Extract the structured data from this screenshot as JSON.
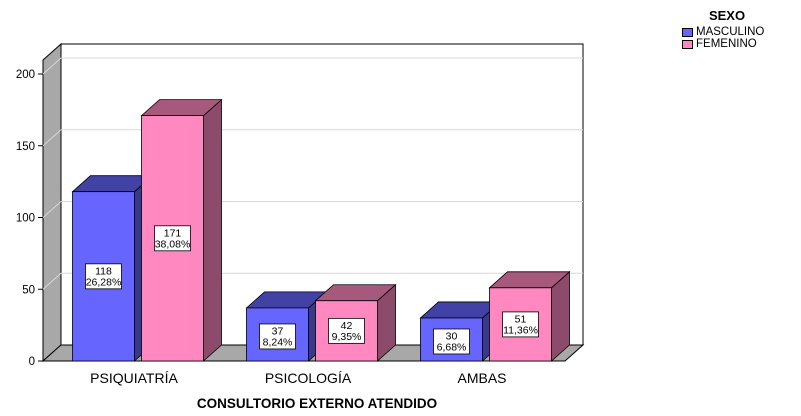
{
  "chart_data": {
    "type": "bar",
    "categories": [
      "PSIQUIATRÍA",
      "PSICOLOGÍA",
      "AMBAS"
    ],
    "series": [
      {
        "name": "MASCULINO",
        "values": [
          118,
          37,
          30
        ],
        "percents": [
          "26,28%",
          "8,24%",
          "6,68%"
        ],
        "color": "#6666ff"
      },
      {
        "name": "FEMENINO",
        "values": [
          171,
          42,
          51
        ],
        "percents": [
          "38,08%",
          "9,35%",
          "11,36%"
        ],
        "color": "#ff88c0"
      }
    ],
    "yticks": [
      "0",
      "50",
      "100",
      "150",
      "200"
    ],
    "ylim": [
      0,
      200
    ],
    "xlabel": "CONSULTORIO EXTERNO ATENDIDO",
    "ylabel": "",
    "legend_title": "SEXO",
    "legend_placement": "top-right",
    "grid": true,
    "style": "3d-clustered"
  }
}
